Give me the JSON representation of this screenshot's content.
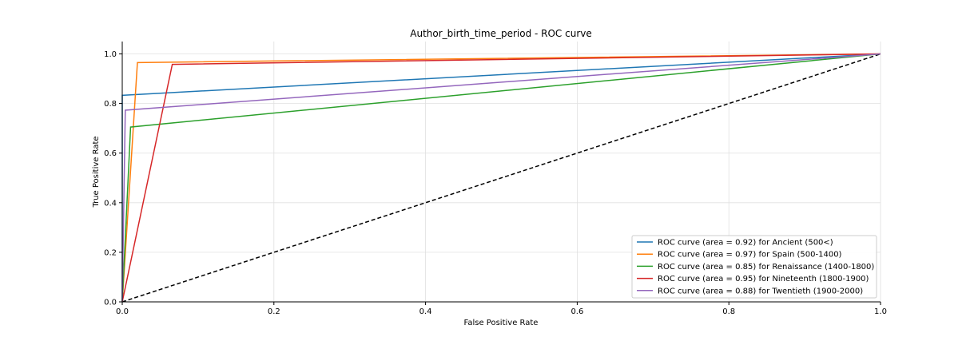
{
  "chart_data": {
    "type": "line",
    "title": "Author_birth_time_period - ROC curve",
    "xlabel": "False Positive Rate",
    "ylabel": "True Positive Rate",
    "xlim": [
      0.0,
      1.0
    ],
    "ylim": [
      0.0,
      1.05
    ],
    "xticks": [
      "0.0",
      "0.2",
      "0.4",
      "0.6",
      "0.8",
      "1.0"
    ],
    "yticks": [
      "0.0",
      "0.2",
      "0.4",
      "0.6",
      "0.8",
      "1.0"
    ],
    "grid": true,
    "legend_position": "lower-right",
    "series": [
      {
        "name": "ROC curve (area = 0.92) for Ancient (500<)",
        "color": "#1f77b4",
        "x": [
          0.0,
          0.0,
          1.0
        ],
        "y": [
          0.0,
          0.833,
          1.0
        ]
      },
      {
        "name": "ROC curve (area = 0.97) for Spain (500-1400)",
        "color": "#ff7f0e",
        "x": [
          0.0,
          0.02,
          1.0
        ],
        "y": [
          0.0,
          0.965,
          1.0
        ]
      },
      {
        "name": "ROC curve (area = 0.85) for Renaissance (1400-1800)",
        "color": "#2ca02c",
        "x": [
          0.0,
          0.011,
          1.0
        ],
        "y": [
          0.0,
          0.705,
          1.0
        ]
      },
      {
        "name": "ROC curve (area = 0.95) for Nineteenth (1800-1900)",
        "color": "#d62728",
        "x": [
          0.0,
          0.066,
          1.0
        ],
        "y": [
          0.0,
          0.958,
          1.0
        ]
      },
      {
        "name": "ROC curve (area = 0.88) for Twentieth (1900-2000)",
        "color": "#9467bd",
        "x": [
          0.0,
          0.004,
          1.0
        ],
        "y": [
          0.0,
          0.773,
          1.0
        ]
      }
    ],
    "reference_line": {
      "style": "dashed",
      "color": "#000000",
      "x": [
        0.0,
        1.0
      ],
      "y": [
        0.0,
        1.0
      ]
    }
  }
}
